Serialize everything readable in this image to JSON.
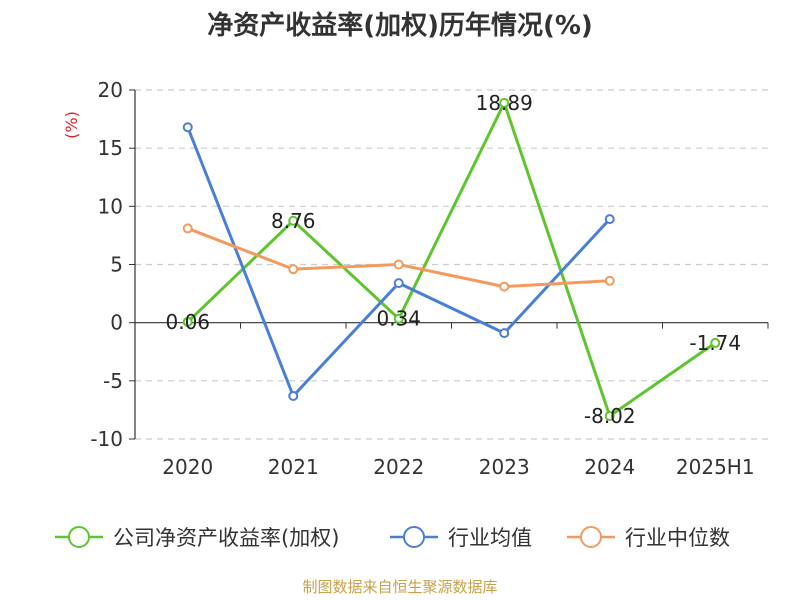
{
  "chart_data": {
    "type": "line",
    "title": "净资产收益率(加权)历年情况(%)",
    "unit_label": "(%)",
    "categories": [
      "2020",
      "2021",
      "2022",
      "2023",
      "2024",
      "2025H1"
    ],
    "yticks": [
      "20",
      "15",
      "10",
      "5",
      "0",
      "-5",
      "-10"
    ],
    "ylim": [
      -10,
      20
    ],
    "grid": true,
    "legend_position": "bottom",
    "series": [
      {
        "name": "公司净资产收益率(加权)",
        "color": "#5fc52e",
        "values": [
          0.06,
          8.76,
          0.34,
          18.89,
          -8.02,
          -1.74
        ],
        "labels": [
          "0.06",
          "8.76",
          "0.34",
          "18.89",
          "-8.02",
          "-1.74"
        ]
      },
      {
        "name": "行业均值",
        "color": "#4a7fd6",
        "values": [
          16.8,
          -6.3,
          3.4,
          -0.9,
          8.9,
          null
        ]
      },
      {
        "name": "行业中位数",
        "color": "#f59a5f",
        "values": [
          8.1,
          4.6,
          5.0,
          3.1,
          3.6,
          null
        ]
      }
    ],
    "source": "制图数据来自恒生聚源数据库"
  }
}
